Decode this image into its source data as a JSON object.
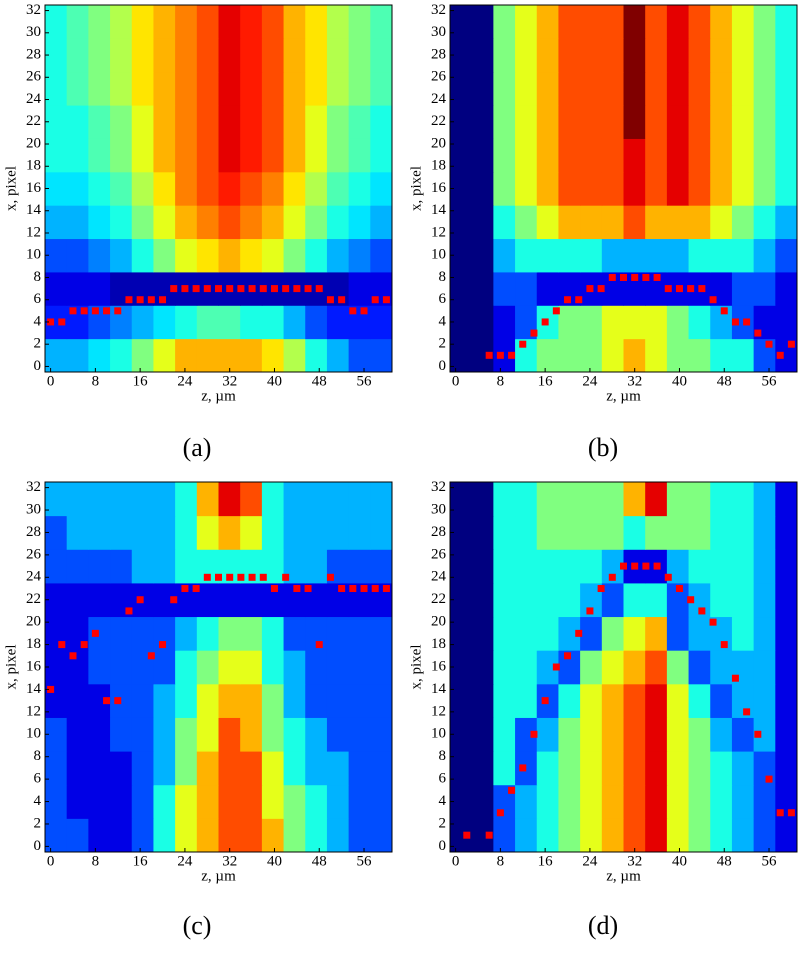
{
  "chart_data": [
    {
      "type": "heatmap",
      "caption": "(a)",
      "xlabel": "z, µm",
      "ylabel": "x, pixel",
      "xlim": [
        -1,
        61
      ],
      "ylim": [
        -0.5,
        32.5
      ],
      "zlim": [
        0,
        10
      ],
      "xticks": [
        0,
        8,
        16,
        24,
        32,
        40,
        48,
        56
      ],
      "yticks": [
        0,
        2,
        4,
        6,
        8,
        10,
        12,
        14,
        16,
        18,
        20,
        22,
        24,
        26,
        28,
        30,
        32
      ],
      "z": [
        [
          3,
          3,
          3.5,
          4,
          5,
          6,
          7,
          7,
          7,
          7,
          6.5,
          5.5,
          4,
          3,
          2,
          2
        ],
        [
          1.5,
          1.5,
          2,
          2.5,
          3,
          3.5,
          4,
          4.5,
          4.5,
          4,
          4,
          3,
          2,
          1.5,
          1.5,
          1.5
        ],
        [
          1,
          1,
          1,
          0.5,
          0.5,
          0.5,
          0.5,
          0.5,
          0.5,
          0.5,
          0.5,
          0.5,
          0.5,
          0.5,
          1,
          1
        ],
        [
          2,
          2,
          2.5,
          3,
          4,
          5,
          6,
          6.5,
          7,
          6.5,
          6,
          5,
          4,
          3,
          2.5,
          2
        ],
        [
          3,
          3,
          3.5,
          4,
          5,
          6,
          7,
          7.5,
          8,
          7.5,
          7,
          6,
          5,
          4,
          3.5,
          3
        ],
        [
          3.5,
          3.5,
          4,
          4.5,
          5.5,
          6.5,
          7.5,
          8,
          8.5,
          8,
          7.5,
          6.5,
          5.5,
          4.5,
          4,
          3.5
        ],
        [
          4,
          4,
          4.5,
          5,
          6,
          7,
          7.5,
          8,
          9,
          8.5,
          8,
          7,
          6,
          5,
          4.5,
          4
        ],
        [
          4,
          4,
          4.5,
          5,
          6,
          7,
          7.5,
          8,
          9,
          8.5,
          8,
          7,
          6,
          5,
          4.5,
          4
        ],
        [
          4,
          4.5,
          5,
          5.5,
          6.5,
          7,
          7.5,
          8,
          9,
          8.5,
          8,
          7,
          6.5,
          5.5,
          5,
          4.5
        ],
        [
          4,
          4.5,
          5,
          5.5,
          6.5,
          7,
          7.5,
          8,
          9,
          8.5,
          8,
          7,
          6.5,
          5.5,
          5,
          4.5
        ],
        [
          4,
          4.5,
          5,
          5.5,
          6.5,
          7,
          7.5,
          8,
          9,
          8.5,
          8,
          7,
          6.5,
          5.5,
          5,
          4.5
        ]
      ],
      "series": [
        {
          "color": "#ff0000",
          "x": [
            0,
            2,
            4,
            6,
            8,
            10,
            12,
            14,
            16,
            18,
            20,
            22,
            24,
            26,
            28,
            30,
            32,
            34,
            36,
            38,
            40,
            42,
            44,
            46,
            48,
            50,
            52,
            54,
            56,
            58,
            60
          ],
          "y": [
            4,
            4,
            5,
            5,
            5,
            5,
            5,
            6,
            6,
            6,
            6,
            7,
            7,
            7,
            7,
            7,
            7,
            7,
            7,
            7,
            7,
            7,
            7,
            7,
            7,
            6,
            6,
            5,
            5,
            6,
            6
          ]
        }
      ]
    },
    {
      "type": "heatmap",
      "caption": "(b)",
      "xlabel": "z, µm",
      "ylabel": "x, pixel",
      "xlim": [
        -1,
        61
      ],
      "ylim": [
        -0.5,
        32.5
      ],
      "zlim": [
        0,
        10
      ],
      "xticks": [
        0,
        8,
        16,
        24,
        32,
        40,
        48,
        56
      ],
      "yticks": [
        0,
        2,
        4,
        6,
        8,
        10,
        12,
        14,
        16,
        18,
        20,
        22,
        24,
        26,
        28,
        30,
        32
      ],
      "z": [
        [
          0,
          0,
          1,
          4,
          5,
          5,
          5,
          6,
          7,
          6,
          5,
          5,
          4,
          4,
          2,
          1
        ],
        [
          0,
          0,
          1,
          2,
          4,
          5,
          5,
          6,
          6,
          6,
          5,
          4,
          3,
          2,
          1,
          1
        ],
        [
          0,
          0,
          2,
          2,
          1,
          1,
          1,
          1,
          1,
          1,
          1,
          1,
          1,
          2,
          2,
          1
        ],
        [
          0,
          0,
          3,
          4,
          4,
          4,
          4,
          3,
          3,
          3,
          3,
          4,
          4,
          4,
          3,
          2
        ],
        [
          0,
          0,
          4,
          5,
          6,
          7,
          7,
          7,
          8,
          7,
          7,
          7,
          6,
          5,
          4,
          3
        ],
        [
          0,
          0,
          5,
          6,
          7,
          8,
          8,
          8,
          9,
          8,
          9,
          8,
          7,
          6,
          5,
          4
        ],
        [
          0,
          0,
          5,
          6,
          7,
          8,
          8,
          8,
          9,
          8,
          9,
          8,
          7,
          6,
          5,
          4
        ],
        [
          0,
          0,
          5,
          6,
          7,
          8,
          8,
          8,
          10,
          8,
          9,
          8,
          7,
          6,
          5,
          4
        ],
        [
          0,
          0,
          5,
          6,
          7,
          8,
          8,
          8,
          10,
          8,
          9,
          8,
          7,
          6,
          5,
          4
        ],
        [
          0,
          0,
          5,
          6,
          7,
          8,
          8,
          8,
          10,
          8,
          9,
          8,
          7,
          6,
          5,
          4
        ],
        [
          0,
          0,
          5,
          6,
          7,
          8,
          8,
          8,
          10,
          8,
          9,
          8,
          7,
          6,
          5,
          4
        ]
      ],
      "series": [
        {
          "color": "#ff0000",
          "x": [
            6,
            8,
            10,
            12,
            14,
            16,
            18,
            20,
            22,
            24,
            26,
            28,
            30,
            32,
            34,
            36,
            38,
            40,
            42,
            44,
            46,
            48,
            50,
            52,
            54,
            56,
            58,
            60
          ],
          "y": [
            1,
            1,
            1,
            2,
            3,
            4,
            5,
            6,
            6,
            7,
            7,
            8,
            8,
            8,
            8,
            8,
            7,
            7,
            7,
            7,
            6,
            5,
            4,
            4,
            3,
            2,
            1,
            2
          ]
        }
      ]
    },
    {
      "type": "heatmap",
      "caption": "(c)",
      "xlabel": "z, µm",
      "ylabel": "x, pixel",
      "xlim": [
        -1,
        61
      ],
      "ylim": [
        -0.5,
        32.5
      ],
      "zlim": [
        0,
        10
      ],
      "xticks": [
        0,
        8,
        16,
        24,
        32,
        40,
        48,
        56
      ],
      "yticks": [
        0,
        2,
        4,
        6,
        8,
        10,
        12,
        14,
        16,
        18,
        20,
        22,
        24,
        26,
        28,
        30,
        32
      ],
      "z": [
        [
          2,
          2,
          1,
          1,
          2,
          4,
          6,
          7,
          8,
          8,
          7,
          5,
          4,
          3,
          2,
          2
        ],
        [
          2,
          1,
          1,
          1,
          2,
          4,
          6,
          7,
          8,
          8,
          6,
          5,
          4,
          3,
          2,
          2
        ],
        [
          2,
          1,
          1,
          1,
          2,
          3,
          5,
          7,
          8,
          8,
          6,
          4,
          3,
          3,
          2,
          2
        ],
        [
          2,
          1,
          1,
          2,
          2,
          3,
          5,
          6,
          8,
          7,
          5,
          4,
          3,
          2,
          2,
          2
        ],
        [
          1,
          1,
          1,
          2,
          2,
          3,
          4,
          6,
          7,
          7,
          5,
          3,
          2,
          2,
          2,
          2
        ],
        [
          1,
          1,
          2,
          2,
          2,
          2,
          4,
          5,
          6,
          6,
          4,
          3,
          2,
          2,
          2,
          2
        ],
        [
          1,
          1,
          2,
          2,
          2,
          2,
          3,
          4,
          5,
          5,
          4,
          2,
          2,
          2,
          2,
          2
        ],
        [
          1,
          1,
          1,
          1,
          1,
          1,
          1,
          1,
          1,
          1,
          1,
          1,
          1,
          1,
          1,
          1
        ],
        [
          2,
          2,
          2,
          2,
          3,
          3,
          4,
          4,
          4,
          4,
          4,
          3,
          3,
          2,
          2,
          2
        ],
        [
          2,
          3,
          3,
          3,
          3,
          3,
          4,
          6,
          7,
          6,
          4,
          3,
          3,
          3,
          3,
          3
        ],
        [
          3,
          3,
          3,
          3,
          3,
          3,
          4,
          7,
          9,
          8,
          4,
          3,
          3,
          3,
          3,
          3
        ]
      ],
      "series": [
        {
          "color": "#ff0000",
          "x": [
            0,
            2,
            4,
            6,
            8,
            10,
            12,
            14,
            16,
            18,
            20,
            22,
            24,
            26,
            28,
            30,
            32,
            34,
            36,
            38,
            40,
            42,
            44,
            46,
            48,
            50,
            52,
            54,
            56,
            58,
            60
          ],
          "y": [
            14,
            18,
            17,
            18,
            19,
            13,
            13,
            21,
            22,
            17,
            18,
            22,
            23,
            23,
            24,
            24,
            24,
            24,
            24,
            24,
            23,
            24,
            23,
            23,
            18,
            24,
            23,
            23,
            23,
            23,
            23
          ]
        }
      ]
    },
    {
      "type": "heatmap",
      "caption": "(d)",
      "xlabel": "z, µm",
      "ylabel": "x, pixel",
      "xlim": [
        -1,
        61
      ],
      "ylim": [
        -0.5,
        32.5
      ],
      "zlim": [
        0,
        10
      ],
      "xticks": [
        0,
        8,
        16,
        24,
        32,
        40,
        48,
        56
      ],
      "yticks": [
        0,
        2,
        4,
        6,
        8,
        10,
        12,
        14,
        16,
        18,
        20,
        22,
        24,
        26,
        28,
        30,
        32
      ],
      "z": [
        [
          0,
          0,
          2,
          3,
          4,
          5,
          6,
          7,
          8,
          9,
          6,
          5,
          4,
          3,
          2,
          1
        ],
        [
          0,
          0,
          2,
          3,
          4,
          5,
          6,
          7,
          8,
          9,
          6,
          5,
          4,
          3,
          2,
          1
        ],
        [
          0,
          0,
          4,
          2,
          4,
          5,
          6,
          7,
          8,
          9,
          6,
          5,
          4,
          3,
          2,
          1
        ],
        [
          0,
          0,
          4,
          2,
          3,
          5,
          6,
          7,
          8,
          9,
          6,
          5,
          3,
          2,
          3,
          1
        ],
        [
          0,
          0,
          4,
          4,
          2,
          4,
          6,
          7,
          8,
          9,
          6,
          4,
          2,
          3,
          3,
          1
        ],
        [
          0,
          0,
          4,
          4,
          3,
          2,
          5,
          6,
          7,
          8,
          5,
          2,
          3,
          3,
          3,
          1
        ],
        [
          0,
          0,
          4,
          4,
          4,
          3,
          2,
          5,
          6,
          7,
          2,
          3,
          3,
          4,
          3,
          1
        ],
        [
          0,
          0,
          4,
          4,
          4,
          4,
          3,
          2,
          4,
          4,
          2,
          3,
          4,
          4,
          3,
          1
        ],
        [
          0,
          0,
          4,
          4,
          4,
          4,
          4,
          3,
          1,
          1,
          3,
          4,
          4,
          4,
          3,
          1
        ],
        [
          0,
          0,
          4,
          4,
          5,
          5,
          5,
          5,
          4,
          5,
          5,
          5,
          4,
          4,
          3,
          1
        ],
        [
          0,
          0,
          4,
          4,
          5,
          5,
          5,
          5,
          7,
          9,
          5,
          5,
          4,
          4,
          3,
          1
        ]
      ],
      "series": [
        {
          "color": "#ff0000",
          "x": [
            2,
            6,
            8,
            10,
            12,
            14,
            16,
            18,
            20,
            22,
            24,
            26,
            28,
            30,
            32,
            34,
            36,
            38,
            40,
            42,
            44,
            46,
            48,
            50,
            52,
            54,
            56,
            58,
            60
          ],
          "y": [
            1,
            1,
            3,
            5,
            7,
            10,
            13,
            16,
            17,
            19,
            21,
            23,
            24,
            25,
            25,
            25,
            25,
            24,
            23,
            22,
            21,
            20,
            18,
            15,
            12,
            10,
            6,
            3,
            3
          ]
        }
      ]
    }
  ]
}
